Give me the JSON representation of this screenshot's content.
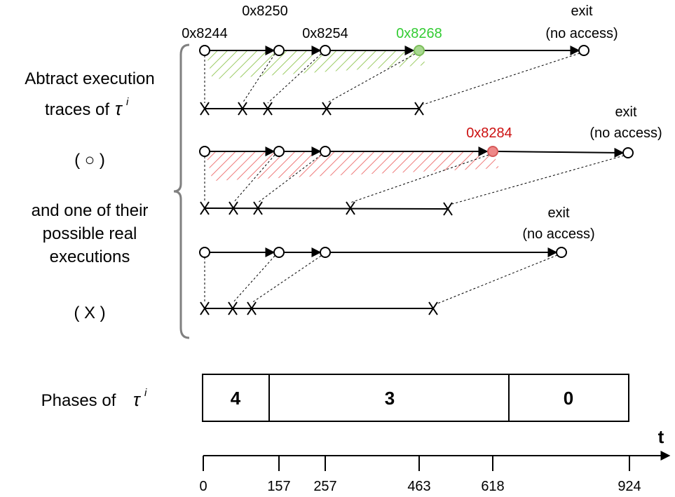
{
  "left_labels": {
    "line1": "Abtract execution",
    "line2": "traces of",
    "tau": "τ",
    "sup": "i",
    "circle_legend": "( ○ )",
    "line3": "and one of their",
    "line4": "possible real",
    "line5": "executions",
    "cross_legend": "( X )"
  },
  "addresses": {
    "a1": "0x8244",
    "a2": "0x8250",
    "a3": "0x8254",
    "green": "0x8268",
    "red": "0x8284"
  },
  "exit_labels": {
    "exit": "exit",
    "no_access": "(no access)"
  },
  "colors": {
    "green": "#33cc33",
    "green_fill": "#a8d890",
    "red": "#cc1111",
    "red_fill": "#ee8888",
    "box_gray": "#808080"
  },
  "phases": {
    "label": "Phases of",
    "tau": "τ",
    "sup": "i",
    "values": [
      "4",
      "3",
      "0"
    ]
  },
  "time_axis": {
    "label": "t",
    "ticks": [
      "0",
      "157",
      "257",
      "463",
      "618",
      "924"
    ]
  }
}
